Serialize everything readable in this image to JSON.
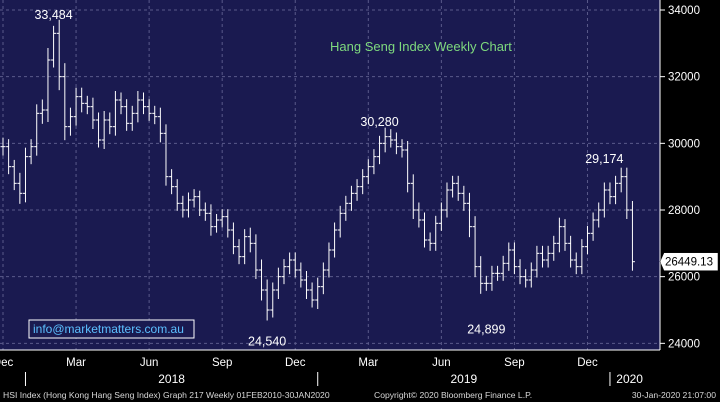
{
  "chart_data": {
    "type": "ohlc",
    "title": "Hang Seng Index Weekly Chart",
    "website": "info@marketmatters.com.au",
    "y_ticks": [
      24000,
      26000,
      28000,
      30000,
      32000,
      34000
    ],
    "y_tick_labels": [
      "24000",
      "26000",
      "28000",
      "30000",
      "32000",
      "34000"
    ],
    "ylim": [
      23800,
      34300
    ],
    "month_labels": [
      {
        "label": "Dec",
        "week": 0
      },
      {
        "label": "Mar",
        "week": 13
      },
      {
        "label": "Jun",
        "week": 26
      },
      {
        "label": "Sep",
        "week": 39
      },
      {
        "label": "Dec",
        "week": 52
      },
      {
        "label": "Mar",
        "week": 65
      },
      {
        "label": "Jun",
        "week": 78
      },
      {
        "label": "Sep",
        "week": 91
      },
      {
        "label": "Dec",
        "week": 104
      }
    ],
    "year_labels": [
      {
        "label": "2018",
        "from_week": 4,
        "to_week": 56
      },
      {
        "label": "2019",
        "from_week": 56,
        "to_week": 108
      },
      {
        "label": "2020",
        "from_week": 108,
        "to_week": 115
      }
    ],
    "annotations": [
      {
        "text": "33,484",
        "week": 9,
        "value": 33484,
        "position": "above"
      },
      {
        "text": "30,280",
        "week": 67,
        "value": 30280,
        "position": "above"
      },
      {
        "text": "29,174",
        "week": 107,
        "value": 29174,
        "position": "above"
      },
      {
        "text": "24,540",
        "week": 47,
        "value": 24540,
        "position": "below"
      },
      {
        "text": "24,899",
        "week": 86,
        "value": 24899,
        "position": "below"
      }
    ],
    "last_price_label": "26449.13",
    "last_price": 26449.13,
    "weekly_closes": [
      29900,
      29300,
      28800,
      28500,
      29600,
      29900,
      30900,
      31000,
      32500,
      33300,
      32000,
      30500,
      30800,
      31400,
      31200,
      31100,
      30700,
      30100,
      30700,
      30500,
      31300,
      31100,
      30600,
      30900,
      31300,
      31100,
      30900,
      30800,
      30300,
      29000,
      28700,
      28200,
      28000,
      28300,
      28400,
      28000,
      27900,
      27500,
      27700,
      27800,
      27400,
      26900,
      26600,
      27200,
      27000,
      26200,
      25600,
      25000,
      25600,
      26000,
      26300,
      26500,
      26200,
      25900,
      25600,
      25300,
      25700,
      26200,
      26800,
      27400,
      27900,
      28200,
      28500,
      28700,
      29000,
      29300,
      29600,
      30000,
      30200,
      30100,
      29900,
      29800,
      28800,
      28000,
      27700,
      27100,
      27000,
      27600,
      28000,
      28600,
      28800,
      28500,
      28200,
      27500,
      26300,
      25800,
      25800,
      26100,
      26100,
      26400,
      26800,
      26300,
      26000,
      25900,
      26200,
      26700,
      26500,
      26700,
      27000,
      27500,
      27000,
      26500,
      26300,
      26900,
      27300,
      27700,
      28000,
      28600,
      28400,
      28800,
      29000,
      28000,
      26449.13
    ],
    "weekly_ranges": [
      600,
      500,
      450,
      700,
      600,
      500,
      600,
      700,
      800,
      500,
      900,
      900,
      600,
      600,
      600,
      500,
      600,
      500,
      600,
      500,
      600,
      500,
      500,
      500,
      600,
      500,
      500,
      500,
      600,
      600,
      500,
      500,
      500,
      500,
      500,
      400,
      500,
      600,
      400,
      500,
      500,
      500,
      500,
      500,
      600,
      600,
      700,
      700,
      500,
      600,
      500,
      500,
      500,
      500,
      600,
      500,
      600,
      500,
      500,
      500,
      500,
      500,
      500,
      500,
      500,
      500,
      500,
      500,
      600,
      500,
      500,
      500,
      600,
      600,
      500,
      500,
      500,
      500,
      500,
      500,
      500,
      500,
      500,
      700,
      700,
      700,
      500,
      500,
      500,
      500,
      500,
      500,
      500,
      500,
      500,
      500,
      500,
      500,
      500,
      600,
      500,
      500,
      500,
      500,
      500,
      500,
      500,
      500,
      500,
      500,
      600,
      600,
      600
    ],
    "colors": {
      "background": "#1a1a50",
      "bars": "#ffffff",
      "grid": "#5a5a8a",
      "title": "#7ed97e",
      "annotation": "#ffffff",
      "last_price_box": "#ffffff",
      "axis_text": "#ffffff"
    }
  },
  "footer": {
    "left": "HSI Index (Hong Kong Hang Seng Index) Graph 217  Weekly 01FEB2010-30JAN2020",
    "center": "Copyright© 2020 Bloomberg Finance L.P.",
    "right": "30-Jan-2020 21:07:00"
  }
}
